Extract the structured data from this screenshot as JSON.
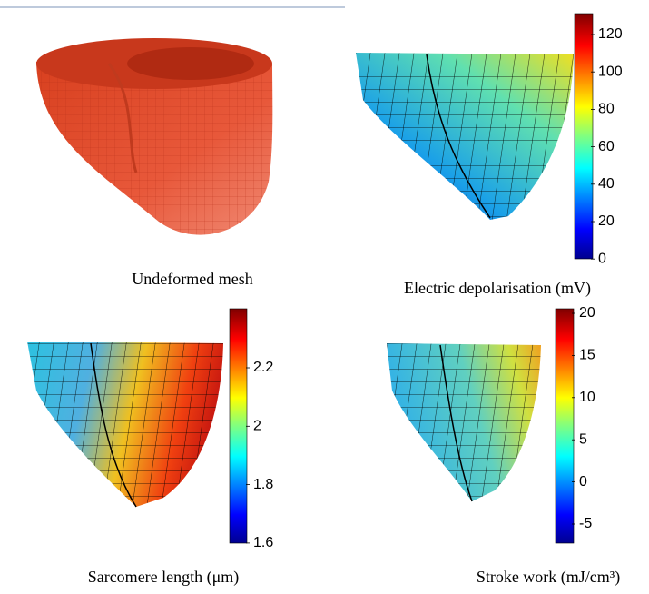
{
  "panels": [
    {
      "caption": "Undeformed mesh"
    },
    {
      "caption": "Electric depolarisation (mV)",
      "colorbar_ticks": [
        120,
        100,
        80,
        60,
        40,
        20,
        0
      ]
    },
    {
      "caption": "Sarcomere length  (μm)",
      "colorbar_ticks": [
        2.2,
        2,
        1.8,
        1.6
      ]
    },
    {
      "caption": "Stroke work (mJ/cm³)",
      "colorbar_ticks": [
        20,
        15,
        10,
        5,
        0,
        -5
      ]
    }
  ]
}
